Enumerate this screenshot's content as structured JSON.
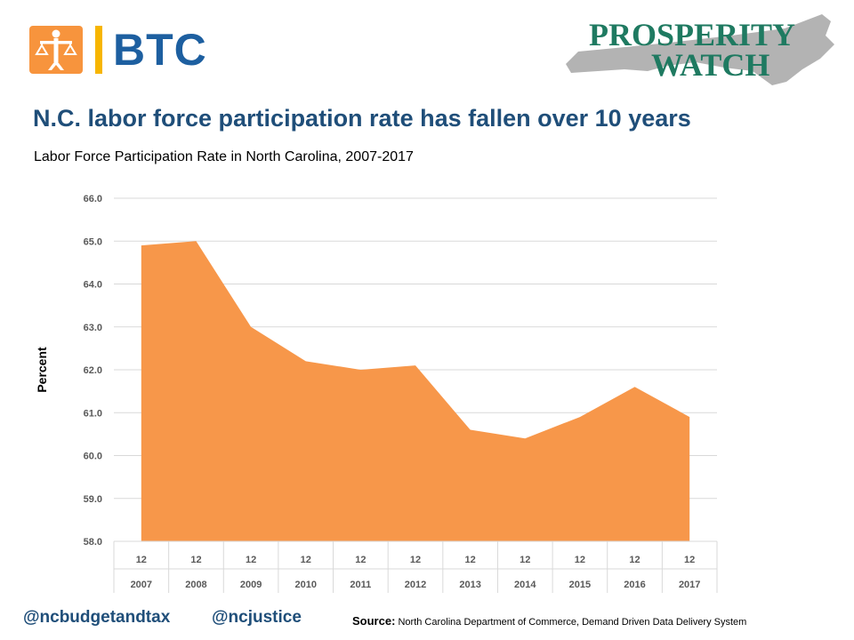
{
  "logos": {
    "btc_text": "BTC",
    "prosperity_line1": "PROSPERITY",
    "prosperity_line2": "WATCH"
  },
  "title": "N.C. labor force participation rate has fallen over 10 years",
  "subtitle": "Labor Force Participation Rate in North Carolina, 2007-2017",
  "footer": {
    "handle1": "@ncbudgetandtax",
    "handle2": "@ncjustice",
    "source_label": "Source:",
    "source_text": "North Carolina Department of Commerce, Demand Driven Data Delivery System"
  },
  "colors": {
    "area": "#f7974a",
    "title": "#1f4e79",
    "btc_blue": "#1d5fa0",
    "btc_orange": "#f7943d",
    "pw_green": "#1f7a61",
    "nc_gray": "#b3b3b3"
  },
  "chart_data": {
    "type": "area",
    "ylabel": "Percent",
    "ylim": [
      58.0,
      66.0
    ],
    "yticks": [
      "58.0",
      "59.0",
      "60.0",
      "61.0",
      "62.0",
      "63.0",
      "64.0",
      "65.0",
      "66.0"
    ],
    "grid": true,
    "x_months": [
      "12",
      "12",
      "12",
      "12",
      "12",
      "12",
      "12",
      "12",
      "12",
      "12",
      "12"
    ],
    "x_years": [
      "2007",
      "2008",
      "2009",
      "2010",
      "2011",
      "2012",
      "2013",
      "2014",
      "2015",
      "2016",
      "2017"
    ],
    "series": [
      {
        "values": [
          64.9,
          65.0,
          63.0,
          62.2,
          62.0,
          62.1,
          60.6,
          60.4,
          60.9,
          61.6,
          60.9
        ]
      }
    ]
  }
}
